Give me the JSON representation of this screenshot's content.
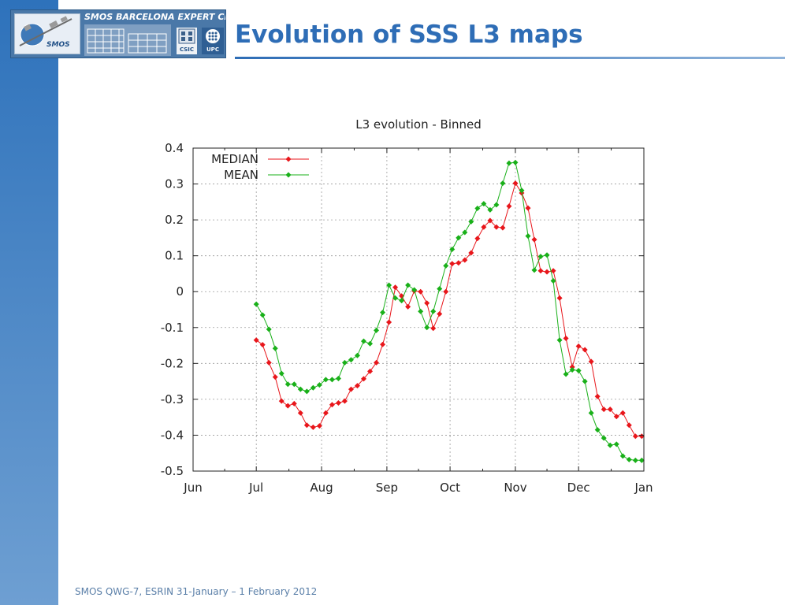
{
  "header": {
    "title": "Evolution of SSS L3 maps",
    "logo": {
      "centre_name": "SMOS BARCELONA EXPERT CENTRE",
      "smos_label": "SMOS",
      "csic_label": "CSIC",
      "upc_label": "UPC"
    }
  },
  "footer": {
    "text": "SMOS QWG-7, ESRIN 31-January – 1 February 2012"
  },
  "colors": {
    "median": "#e8161b",
    "mean": "#19b019",
    "title": "#2e6db6",
    "sidebar": "#2e72bb"
  },
  "chart_data": {
    "type": "line",
    "title": "L3 evolution - Binned",
    "xlabel": "",
    "ylabel": "",
    "x_ticks": [
      "Jun",
      "Jul",
      "Aug",
      "Sep",
      "Oct",
      "Nov",
      "Dec",
      "Jan"
    ],
    "x_range": [
      "Jun",
      "Jan"
    ],
    "ylim": [
      -0.5,
      0.4
    ],
    "y_ticks": [
      "0.4",
      "0.3",
      "0.2",
      "0.1",
      "0",
      "-0.1",
      "-0.2",
      "-0.3",
      "-0.4",
      "-0.5"
    ],
    "y_tick_values": [
      0.4,
      0.3,
      0.2,
      0.1,
      0,
      -0.1,
      -0.2,
      -0.3,
      -0.4,
      -0.5
    ],
    "grid": true,
    "legend": "top-left",
    "series": [
      {
        "name": "MEDIAN",
        "color": "#e8161b",
        "x": [
          "Jul 1",
          "Jul 4",
          "Jul 7",
          "Jul 10",
          "Jul 13",
          "Jul 16",
          "Jul 19",
          "Jul 22",
          "Jul 25",
          "Jul 28",
          "Jul 31",
          "Aug 3",
          "Aug 6",
          "Aug 9",
          "Aug 12",
          "Aug 15",
          "Aug 18",
          "Aug 21",
          "Aug 24",
          "Aug 27",
          "Aug 30",
          "Sep 2",
          "Sep 5",
          "Sep 8",
          "Sep 11",
          "Sep 14",
          "Sep 17",
          "Sep 20",
          "Sep 23",
          "Sep 26",
          "Sep 29",
          "Oct 2",
          "Oct 5",
          "Oct 8",
          "Oct 11",
          "Oct 14",
          "Oct 17",
          "Oct 20",
          "Oct 23",
          "Oct 26",
          "Oct 29",
          "Nov 1",
          "Nov 4",
          "Nov 7",
          "Nov 10",
          "Nov 13",
          "Nov 16",
          "Nov 19",
          "Nov 22",
          "Nov 25",
          "Nov 28",
          "Dec 1",
          "Dec 4",
          "Dec 7",
          "Dec 10",
          "Dec 13",
          "Dec 16",
          "Dec 19",
          "Dec 22",
          "Dec 25",
          "Dec 28",
          "Dec 31"
        ],
        "values": [
          -0.135,
          -0.148,
          -0.198,
          -0.238,
          -0.305,
          -0.318,
          -0.312,
          -0.338,
          -0.372,
          -0.378,
          -0.374,
          -0.338,
          -0.315,
          -0.31,
          -0.305,
          -0.272,
          -0.262,
          -0.243,
          -0.222,
          -0.198,
          -0.147,
          -0.085,
          0.012,
          -0.012,
          -0.042,
          0.002,
          0.0,
          -0.032,
          -0.102,
          -0.062,
          0.0,
          0.078,
          0.08,
          0.088,
          0.108,
          0.148,
          0.18,
          0.198,
          0.18,
          0.178,
          0.238,
          0.302,
          0.275,
          0.233,
          0.145,
          0.058,
          0.055,
          0.058,
          -0.018,
          -0.13,
          -0.21,
          -0.152,
          -0.162,
          -0.195,
          -0.292,
          -0.328,
          -0.328,
          -0.348,
          -0.338,
          -0.372,
          -0.403,
          -0.403
        ]
      },
      {
        "name": "MEAN",
        "color": "#19b019",
        "x": [
          "Jul 1",
          "Jul 4",
          "Jul 7",
          "Jul 10",
          "Jul 13",
          "Jul 16",
          "Jul 19",
          "Jul 22",
          "Jul 25",
          "Jul 28",
          "Jul 31",
          "Aug 3",
          "Aug 6",
          "Aug 9",
          "Aug 12",
          "Aug 15",
          "Aug 18",
          "Aug 21",
          "Aug 24",
          "Aug 27",
          "Aug 30",
          "Sep 2",
          "Sep 5",
          "Sep 8",
          "Sep 11",
          "Sep 14",
          "Sep 17",
          "Sep 20",
          "Sep 23",
          "Sep 26",
          "Sep 29",
          "Oct 2",
          "Oct 5",
          "Oct 8",
          "Oct 11",
          "Oct 14",
          "Oct 17",
          "Oct 20",
          "Oct 23",
          "Oct 26",
          "Oct 29",
          "Nov 1",
          "Nov 4",
          "Nov 7",
          "Nov 10",
          "Nov 13",
          "Nov 16",
          "Nov 19",
          "Nov 22",
          "Nov 25",
          "Nov 28",
          "Dec 1",
          "Dec 4",
          "Dec 7",
          "Dec 10",
          "Dec 13",
          "Dec 16",
          "Dec 19",
          "Dec 22",
          "Dec 25",
          "Dec 28",
          "Dec 31"
        ],
        "values": [
          -0.035,
          -0.065,
          -0.105,
          -0.158,
          -0.228,
          -0.258,
          -0.258,
          -0.272,
          -0.278,
          -0.268,
          -0.26,
          -0.245,
          -0.245,
          -0.242,
          -0.198,
          -0.19,
          -0.178,
          -0.138,
          -0.145,
          -0.108,
          -0.058,
          0.018,
          -0.018,
          -0.025,
          0.018,
          0.005,
          -0.055,
          -0.1,
          -0.055,
          0.008,
          0.072,
          0.118,
          0.15,
          0.165,
          0.195,
          0.232,
          0.245,
          0.228,
          0.242,
          0.302,
          0.358,
          0.36,
          0.282,
          0.155,
          0.06,
          0.098,
          0.102,
          0.03,
          -0.135,
          -0.23,
          -0.218,
          -0.22,
          -0.25,
          -0.338,
          -0.385,
          -0.408,
          -0.428,
          -0.425,
          -0.458,
          -0.468,
          -0.47,
          -0.47
        ]
      }
    ]
  }
}
